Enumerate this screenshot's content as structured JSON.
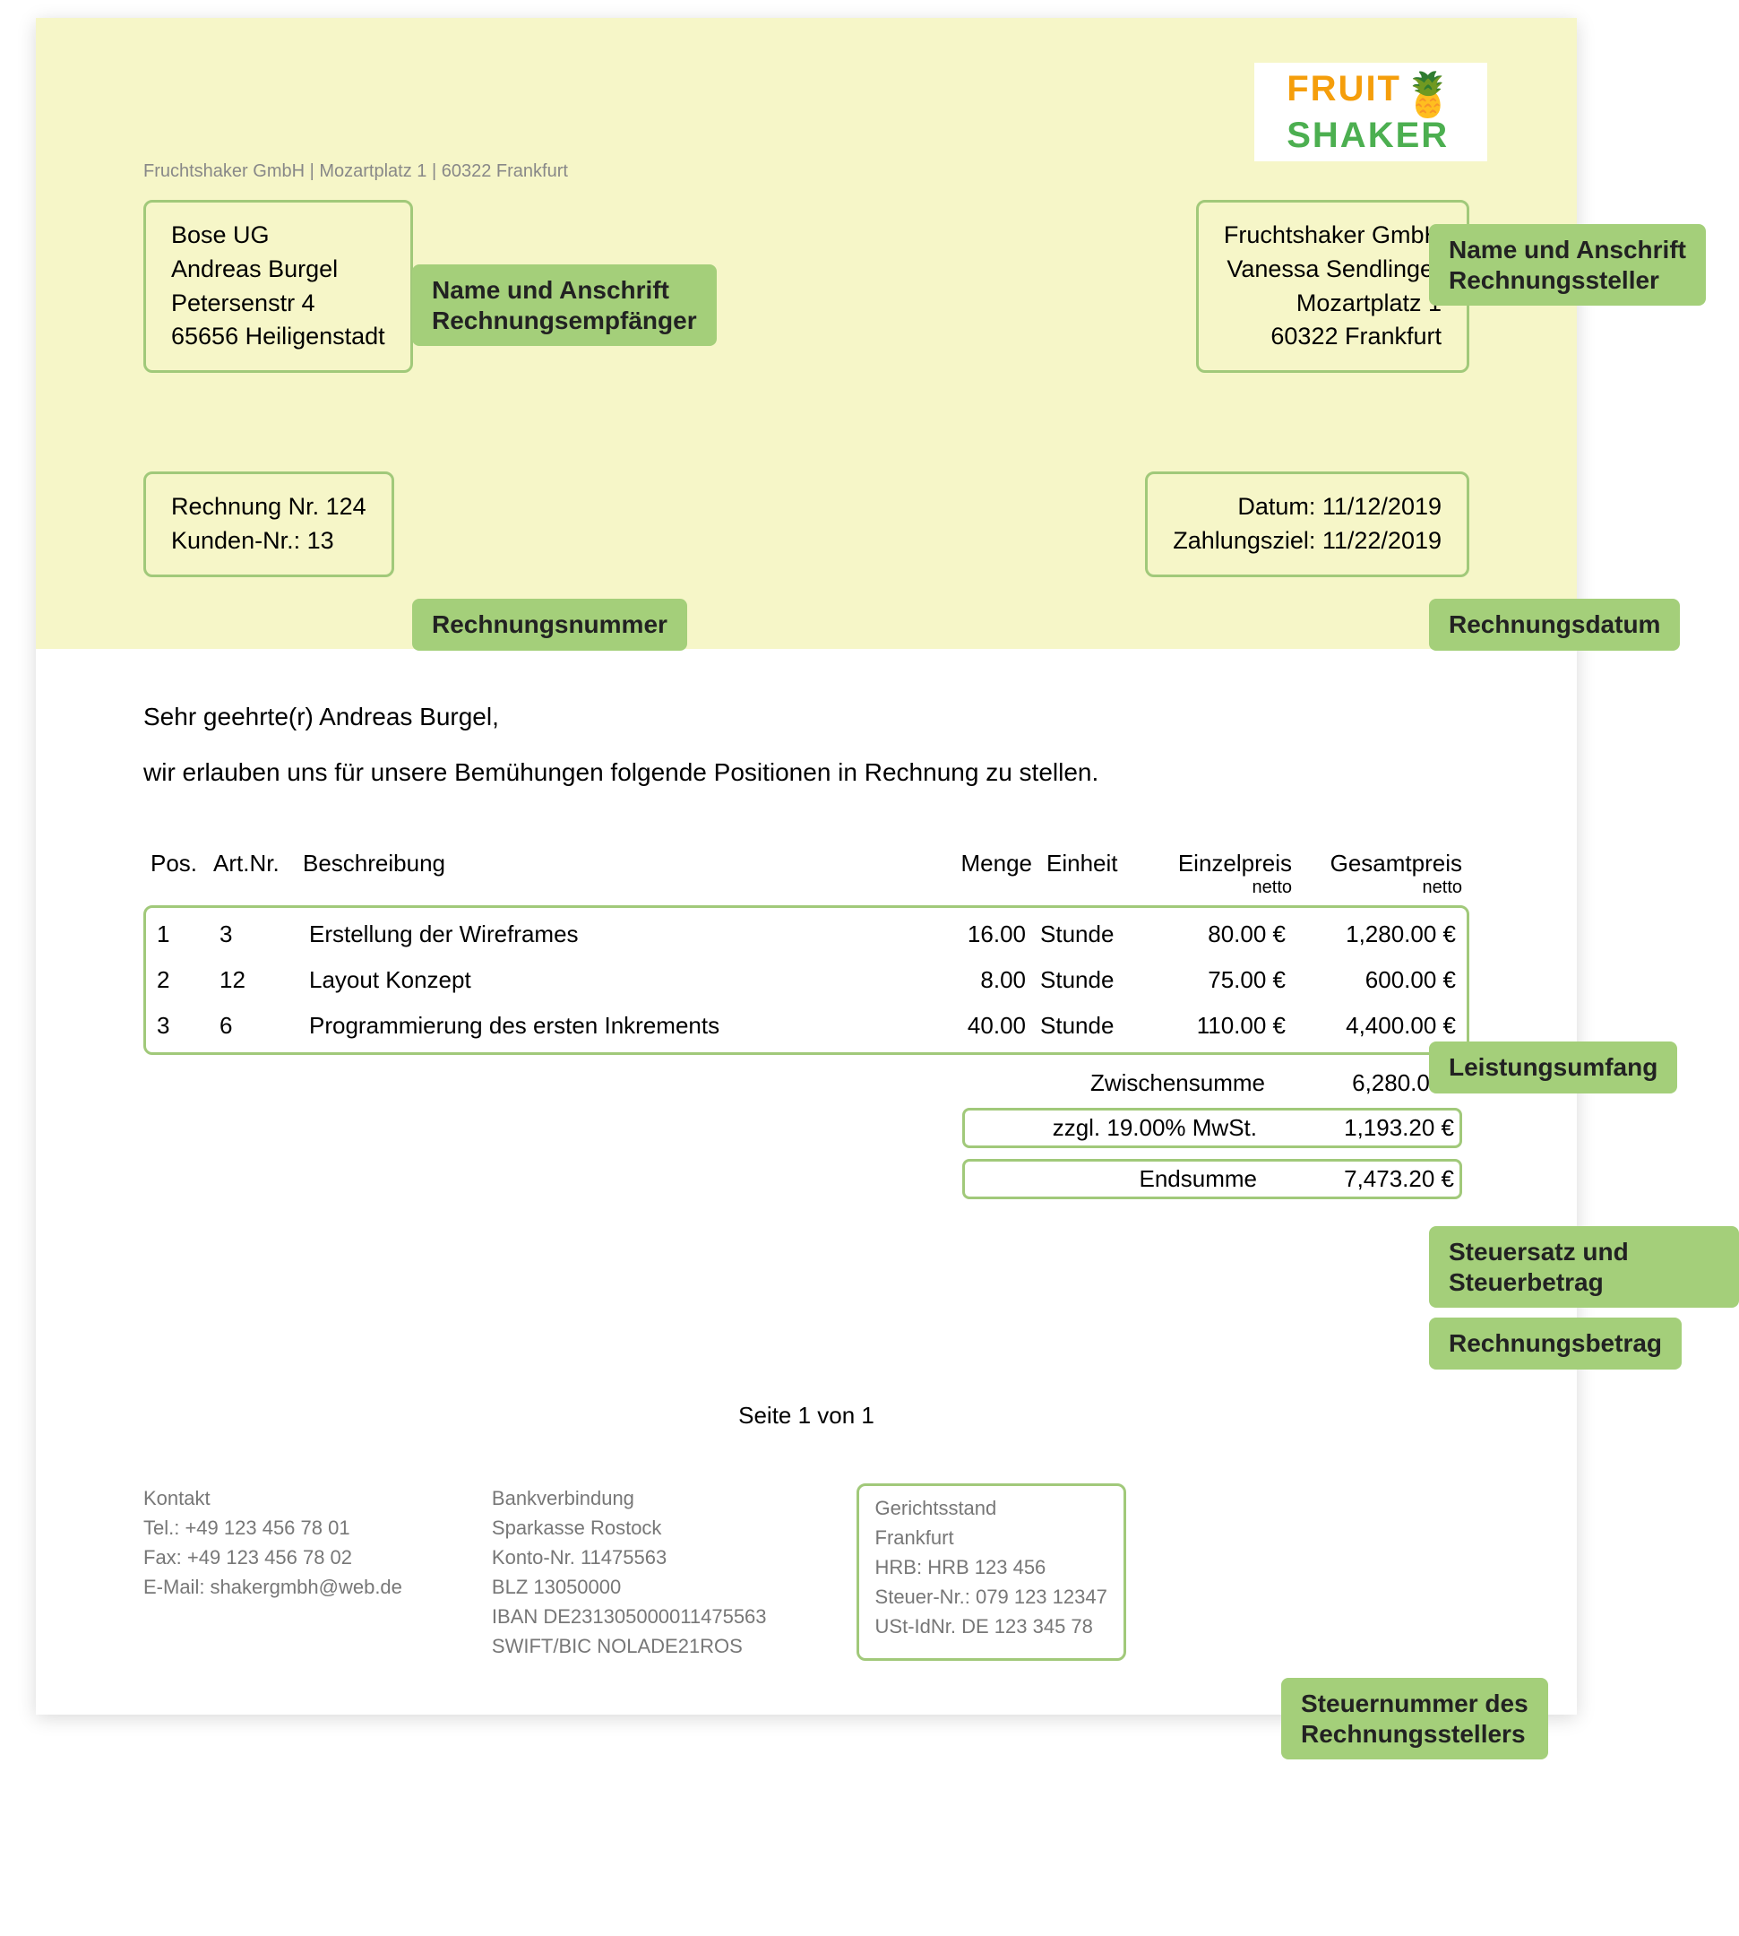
{
  "colors": {
    "header_bg": "#f6f6c8",
    "box_border": "#a1c97a",
    "annotation_bg": "#a4cf7a",
    "muted_text": "#888888",
    "footer_text": "#777777",
    "logo_orange": "#f59e0b",
    "logo_green": "#4caf50",
    "page_bg": "#ffffff"
  },
  "logo": {
    "line1": "FRUIT",
    "line2": "SHAKER",
    "icon": "🍍"
  },
  "sender_line": "Fruchtshaker GmbH | Mozartplatz 1 | 60322 Frankfurt",
  "recipient": {
    "company": "Bose UG",
    "contact": "Andreas Burgel",
    "street": "Petersenstr 4",
    "city": "65656 Heiligenstadt"
  },
  "issuer": {
    "company": "Fruchtshaker GmbH",
    "contact": "Vanessa Sendlinger",
    "street": "Mozartplatz 1",
    "city": "60322 Frankfurt"
  },
  "invoice_meta": {
    "invoice_no": "Rechnung Nr. 124",
    "customer_no": "Kunden-Nr.: 13",
    "date": "Datum: 11/12/2019",
    "due": "Zahlungsziel: 11/22/2019"
  },
  "salutation": "Sehr geehrte(r) Andreas Burgel,",
  "intro": "wir erlauben uns für unsere Bemühungen folgende Positionen in Rechnung zu stellen.",
  "table": {
    "headers": {
      "pos": "Pos.",
      "artnr": "Art.Nr.",
      "desc": "Beschreibung",
      "qty": "Menge",
      "unit": "Einheit",
      "unitprice": "Einzelpreis",
      "unitprice_sub": "netto",
      "total": "Gesamtpreis",
      "total_sub": "netto"
    },
    "rows": [
      {
        "pos": "1",
        "artnr": "3",
        "desc": "Erstellung der Wireframes",
        "qty": "16.00",
        "unit": "Stunde",
        "unitprice": "80.00 €",
        "total": "1,280.00 €"
      },
      {
        "pos": "2",
        "artnr": "12",
        "desc": "Layout Konzept",
        "qty": "8.00",
        "unit": "Stunde",
        "unitprice": "75.00 €",
        "total": "600.00 €"
      },
      {
        "pos": "3",
        "artnr": "6",
        "desc": "Programmierung des ersten Inkrements",
        "qty": "40.00",
        "unit": "Stunde",
        "unitprice": "110.00 €",
        "total": "4,400.00 €"
      }
    ]
  },
  "totals": {
    "subtotal_label": "Zwischensumme",
    "subtotal_value": "6,280.00 €",
    "tax_label": "zzgl. 19.00% MwSt.",
    "tax_value": "1,193.20 €",
    "grand_label": "Endsumme",
    "grand_value": "7,473.20 €"
  },
  "page_indicator": "Seite 1 von 1",
  "footer": {
    "contact": {
      "title": "Kontakt",
      "tel": "Tel.: +49 123 456 78 01",
      "fax": "Fax: +49 123 456 78 02",
      "email": "E-Mail: shakergmbh@web.de"
    },
    "bank": {
      "title": "Bankverbindung",
      "bank": "Sparkasse Rostock",
      "konto": "Konto-Nr. 11475563",
      "blz": "BLZ 13050000",
      "iban": "IBAN DE231305000011475563",
      "bic": "SWIFT/BIC NOLADE21ROS"
    },
    "legal": {
      "title": "Gerichtsstand",
      "city": "Frankfurt",
      "hrb": "HRB: HRB 123 456",
      "steuer": "Steuer-Nr.: 079 123 12347",
      "ust": "USt-IdNr. DE 123 345 78"
    }
  },
  "annotations": {
    "recipient": "Name und Anschrift\nRechnungsempfänger",
    "issuer": "Name und Anschrift\nRechnungssteller",
    "invoice_no": "Rechnungsnummer",
    "date": "Rechnungsdatum",
    "scope": "Leistungsumfang",
    "tax": "Steuersatz und Steuerbetrag",
    "total": "Rechnungsbetrag",
    "taxid": "Steuernummer des\nRechnungsstellers"
  }
}
